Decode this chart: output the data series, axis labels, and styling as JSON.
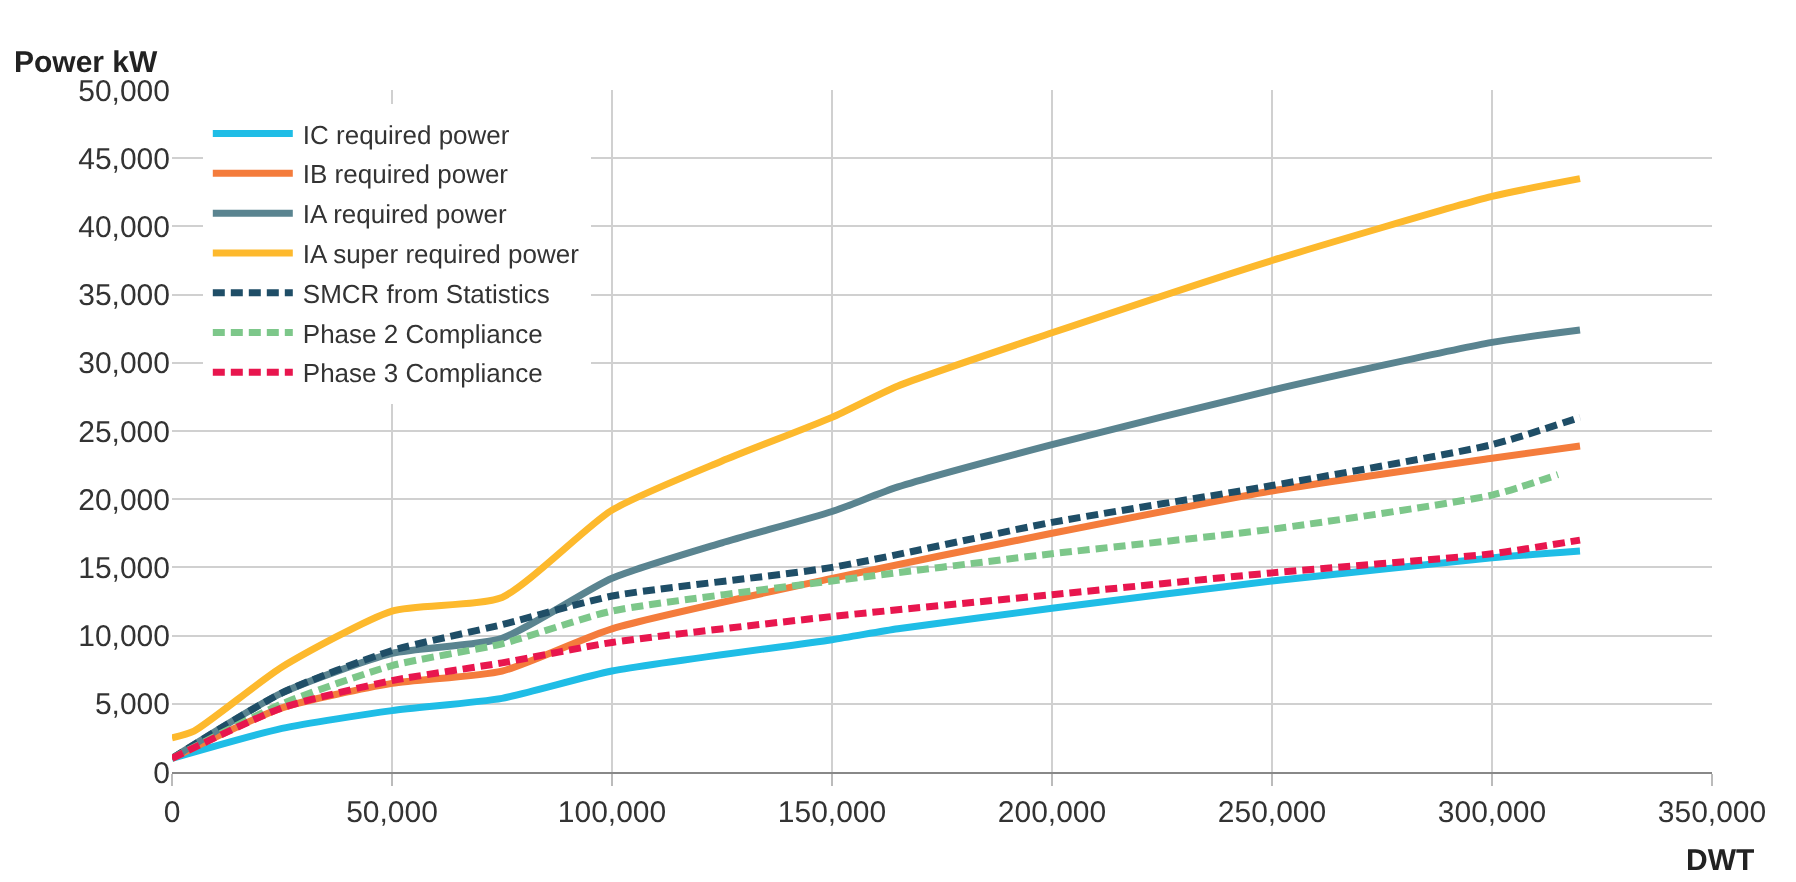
{
  "chart_data": {
    "type": "line",
    "xlabel": "DWT",
    "ylabel": "Power kW",
    "xlim": [
      0,
      350000
    ],
    "xticks": [
      {
        "value": 0,
        "label": "0"
      },
      {
        "value": 50000,
        "label": "50,000"
      },
      {
        "value": 100000,
        "label": "100,000"
      },
      {
        "value": 150000,
        "label": "150,000"
      },
      {
        "value": 200000,
        "label": "200,000"
      },
      {
        "value": 250000,
        "label": "250,000"
      },
      {
        "value": 300000,
        "label": "300,000"
      },
      {
        "value": 350000,
        "label": "350,000"
      }
    ],
    "ylim": [
      0,
      50000
    ],
    "yticks": [
      {
        "value": 0,
        "label": "0"
      },
      {
        "value": 5000,
        "label": "5,000"
      },
      {
        "value": 10000,
        "label": "10,000"
      },
      {
        "value": 15000,
        "label": "15,000"
      },
      {
        "value": 20000,
        "label": "20,000"
      },
      {
        "value": 25000,
        "label": "25,000"
      },
      {
        "value": 30000,
        "label": "30,000"
      },
      {
        "value": 35000,
        "label": "35,000"
      },
      {
        "value": 40000,
        "label": "40,000"
      },
      {
        "value": 45000,
        "label": "45,000"
      },
      {
        "value": 50000,
        "label": "50,000"
      }
    ],
    "grid": true,
    "legend": "top left",
    "marker": "none",
    "series": [
      {
        "name": "IC required power",
        "color": "#1fbde6",
        "line_style": "solid",
        "x": [
          0,
          25000,
          50000,
          75000,
          100000,
          150000,
          165000,
          200000,
          250000,
          300000,
          320000
        ],
        "values": [
          1000,
          3200,
          4500,
          5400,
          7400,
          9700,
          10500,
          12000,
          14000,
          15700,
          16200
        ]
      },
      {
        "name": "IB required power",
        "color": "#f47c3c",
        "line_style": "solid",
        "x": [
          0,
          25000,
          50000,
          75000,
          100000,
          150000,
          200000,
          250000,
          300000,
          320000
        ],
        "values": [
          1000,
          4700,
          6500,
          7400,
          10500,
          14200,
          17500,
          20600,
          23000,
          23900
        ]
      },
      {
        "name": "IA required power",
        "color": "#5a8490",
        "line_style": "solid",
        "x": [
          0,
          25000,
          50000,
          75000,
          100000,
          125000,
          150000,
          165000,
          200000,
          250000,
          300000,
          320000
        ],
        "values": [
          1000,
          5800,
          8700,
          9800,
          14200,
          16800,
          19100,
          20900,
          24000,
          28000,
          31500,
          32400
        ]
      },
      {
        "name": "IA super required power",
        "color": "#fdb92d",
        "line_style": "solid",
        "x": [
          0,
          5000,
          25000,
          50000,
          75000,
          100000,
          125000,
          150000,
          165000,
          200000,
          250000,
          300000,
          320000
        ],
        "values": [
          2500,
          3000,
          7700,
          11800,
          12800,
          19200,
          22800,
          26000,
          28300,
          32200,
          37500,
          42200,
          43500
        ]
      },
      {
        "name": "SMCR from Statistics",
        "color": "#1f4e67",
        "line_style": "dashed",
        "x": [
          0,
          25000,
          50000,
          75000,
          100000,
          150000,
          200000,
          250000,
          300000,
          320000
        ],
        "values": [
          1000,
          5800,
          8900,
          10800,
          12900,
          15000,
          18300,
          21000,
          24000,
          26000
        ]
      },
      {
        "name": "Phase 2 Compliance",
        "color": "#7dc78a",
        "line_style": "dashed",
        "x": [
          0,
          25000,
          50000,
          75000,
          100000,
          150000,
          200000,
          250000,
          300000,
          315000
        ],
        "values": [
          1000,
          5000,
          7800,
          9400,
          11800,
          14000,
          16000,
          17800,
          20300,
          21800
        ]
      },
      {
        "name": "Phase 3 Compliance",
        "color": "#e8164e",
        "line_style": "dashed",
        "x": [
          0,
          25000,
          50000,
          75000,
          100000,
          150000,
          200000,
          250000,
          300000,
          320000
        ],
        "values": [
          1000,
          4700,
          6700,
          8000,
          9500,
          11400,
          13000,
          14600,
          16000,
          17000
        ]
      }
    ]
  }
}
